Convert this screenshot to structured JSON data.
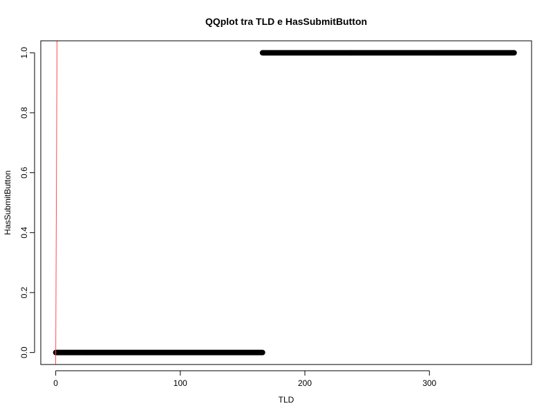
{
  "chart_data": {
    "type": "scatter",
    "title": "QQplot tra TLD e HasSubmitButton",
    "xlabel": "TLD",
    "ylabel": "HasSubmitButton",
    "xlim": [
      -12,
      382
    ],
    "ylim": [
      -0.04,
      1.04
    ],
    "x_ticks": [
      0,
      100,
      200,
      300
    ],
    "x_tick_labels": [
      "0",
      "100",
      "200",
      "300"
    ],
    "y_ticks": [
      0.0,
      0.2,
      0.4,
      0.6,
      0.8,
      1.0
    ],
    "y_tick_labels": [
      "0.0",
      "0.2",
      "0.4",
      "0.6",
      "0.8",
      "1.0"
    ],
    "grid": false,
    "point_color": "#000000",
    "reference_line_color": "#ff4a4a",
    "reference_line": {
      "slope": 1,
      "intercept": 0
    },
    "series": [
      {
        "x_start": 0,
        "x_end": 166,
        "x_step": 0.5,
        "y": 0
      },
      {
        "x_start": 166,
        "x_end": 368,
        "x_step": 0.5,
        "y": 1
      }
    ]
  }
}
